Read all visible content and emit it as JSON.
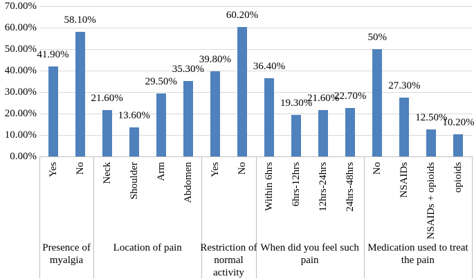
{
  "chart_data": {
    "type": "bar",
    "title": "",
    "xlabel": "",
    "ylabel": "",
    "ylim": [
      0,
      70
    ],
    "ytick_step": 10,
    "ytick_labels": [
      "0.00%",
      "10.00%",
      "20.00%",
      "30.00%",
      "40.00%",
      "50.00%",
      "60.00%",
      "70.00%"
    ],
    "grid": true,
    "legend": false,
    "bar_color": "#4F81BD",
    "gridline_color": "#D9D9D9",
    "axis_color": "#BFBFBF",
    "text_color": "#000000",
    "groups": [
      {
        "label": "Presence of myalgia",
        "label_lines": [
          "Presence of",
          "myalgia"
        ],
        "categories": [
          "Yes",
          "No"
        ],
        "values": [
          41.9,
          58.1
        ],
        "data_labels": [
          "41.90%",
          "58.10%"
        ]
      },
      {
        "label": "Location of pain",
        "label_lines": [
          "Location of pain"
        ],
        "categories": [
          "Neck",
          "Shoulder",
          "Arm",
          "Abdomen"
        ],
        "values": [
          21.6,
          13.6,
          29.5,
          35.3
        ],
        "data_labels": [
          "21.60%",
          "13.60%",
          "29.50%",
          "35.30%"
        ]
      },
      {
        "label": "Restriction of normal activity",
        "label_lines": [
          "Restriction of",
          "normal",
          "activity"
        ],
        "categories": [
          "Yes",
          "No"
        ],
        "values": [
          39.8,
          60.2
        ],
        "data_labels": [
          "39.80%",
          "60.20%"
        ]
      },
      {
        "label": "When did you feel such pain",
        "label_lines": [
          "When did you feel such",
          "pain"
        ],
        "categories": [
          "Within 6hrs",
          "6hrs-12hrs",
          "12hrs-24hrs",
          "24hrs-48hrs"
        ],
        "values": [
          36.4,
          19.3,
          21.6,
          22.7
        ],
        "data_labels": [
          "36.40%",
          "19.30%",
          "21.60%",
          "22.70%"
        ]
      },
      {
        "label": "Medication used to treat the pain",
        "label_lines": [
          "Medication used to treat",
          "the pain"
        ],
        "categories": [
          "No",
          "NSAIDs",
          "NSAIDs + opioids",
          "opioids"
        ],
        "values": [
          50,
          27.3,
          12.5,
          10.2
        ],
        "data_labels": [
          "50%",
          "27.30%",
          "12.50%",
          "10.20%"
        ]
      }
    ]
  }
}
